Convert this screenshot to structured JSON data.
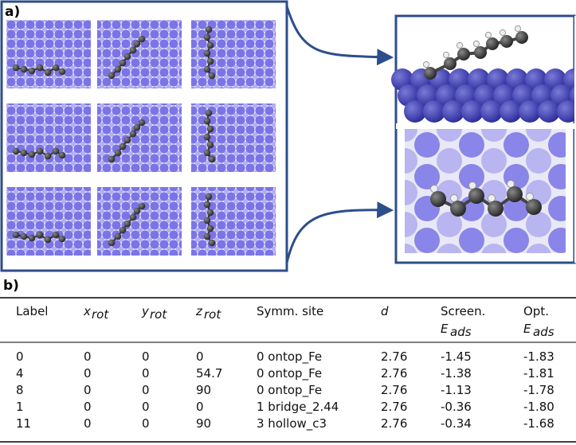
{
  "panels": {
    "a": "a)",
    "b": "b)"
  },
  "table": {
    "headers": [
      {
        "text": "Label"
      },
      {
        "symbol": "x",
        "sub": "rot"
      },
      {
        "symbol": "y",
        "sub": "rot"
      },
      {
        "symbol": "z",
        "sub": "rot"
      },
      {
        "text": "Symm. site"
      },
      {
        "symbol": "d"
      },
      {
        "text": "Screen.",
        "symbol": "E",
        "sub": "ads"
      },
      {
        "text": "Opt.",
        "symbol": "E",
        "sub": "ads"
      }
    ],
    "rows": [
      [
        "0",
        "0",
        "0",
        "0",
        "0 ontop_Fe",
        "2.76",
        "-1.45",
        "-1.83"
      ],
      [
        "4",
        "0",
        "0",
        "54.7",
        "0 ontop_Fe",
        "2.76",
        "-1.38",
        "-1.81"
      ],
      [
        "8",
        "0",
        "0",
        "90",
        "0 ontop_Fe",
        "2.76",
        "-1.13",
        "-1.78"
      ],
      [
        "1",
        "0",
        "0",
        "0",
        "1 bridge_2.44",
        "2.76",
        "-0.36",
        "-1.80"
      ],
      [
        "11",
        "0",
        "0",
        "90",
        "3 hollow_c3",
        "2.76",
        "-0.34",
        "-1.68"
      ]
    ]
  }
}
